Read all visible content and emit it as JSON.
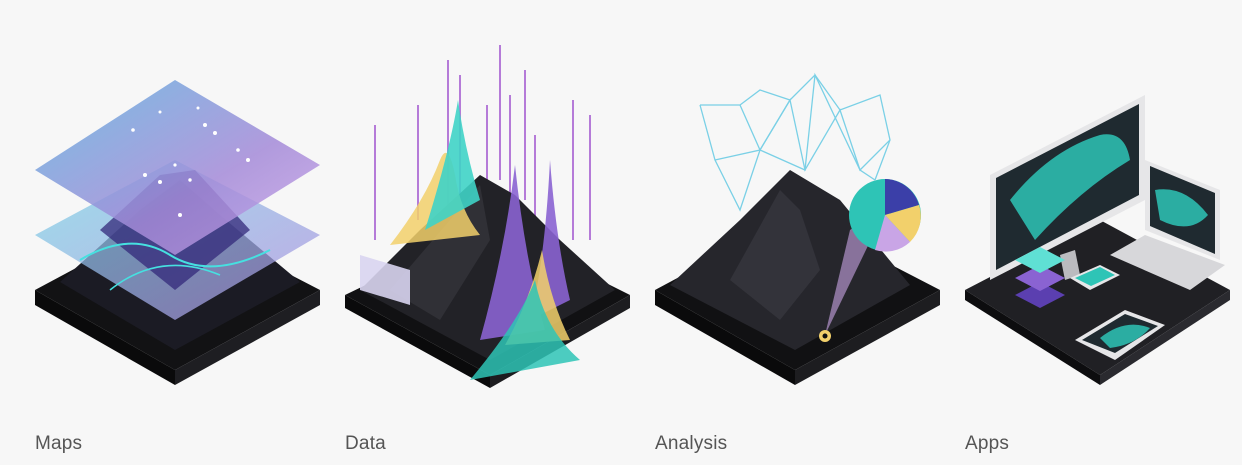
{
  "panels": [
    {
      "id": "maps",
      "label": "Maps",
      "illustration": "layered-map-terrain-icon"
    },
    {
      "id": "data",
      "label": "Data",
      "illustration": "data-spikes-terrain-icon"
    },
    {
      "id": "analysis",
      "label": "Analysis",
      "illustration": "network-analysis-terrain-icon"
    },
    {
      "id": "apps",
      "label": "Apps",
      "illustration": "devices-apps-icon"
    }
  ],
  "colors": {
    "background": "#f7f7f7",
    "terrain": "#1c1c1f",
    "teal": "#2ec4b6",
    "purple": "#8a63d2",
    "lavender": "#c9a5e6",
    "yellow": "#f2d06b",
    "caption": "#555555"
  }
}
